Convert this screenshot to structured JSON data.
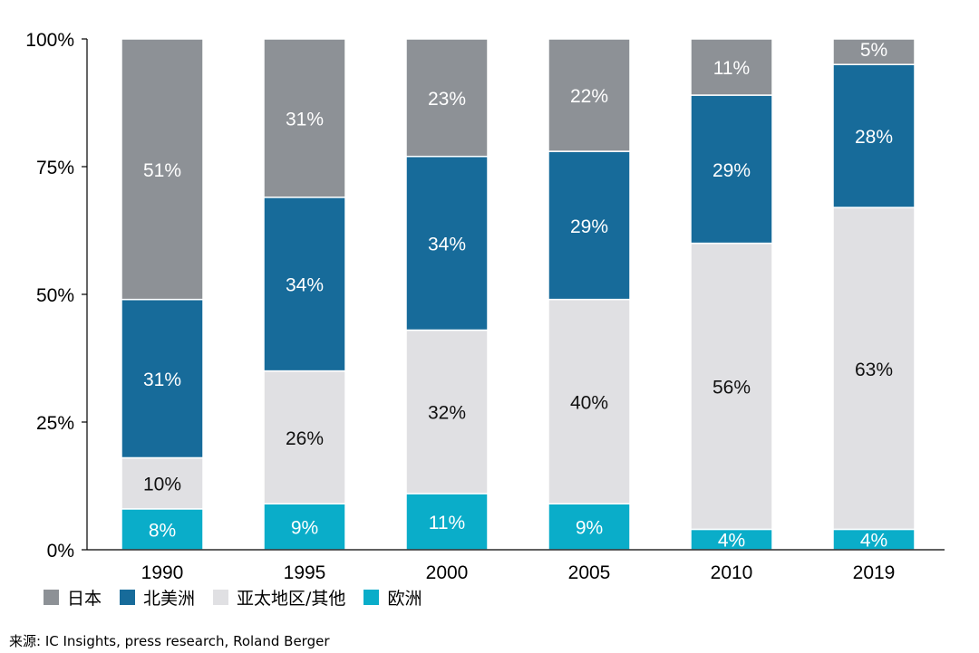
{
  "chart_data": {
    "type": "bar",
    "stacked": true,
    "categories": [
      "1990",
      "1995",
      "2000",
      "2005",
      "2010",
      "2019"
    ],
    "series": [
      {
        "name": "欧洲",
        "color": "#0aadc9",
        "values": [
          8,
          9,
          11,
          9,
          4,
          4
        ],
        "labels": [
          "8%",
          "9%",
          "11%",
          "9%",
          "4%",
          "4%"
        ]
      },
      {
        "name": "亚太地区/其他",
        "color": "#e0e0e3",
        "values": [
          10,
          26,
          32,
          40,
          56,
          63
        ],
        "labels": [
          "10%",
          "26%",
          "32%",
          "40%",
          "56%",
          "63%"
        ]
      },
      {
        "name": "北美洲",
        "color": "#176b9a",
        "values": [
          31,
          34,
          34,
          29,
          29,
          28
        ],
        "labels": [
          "31%",
          "34%",
          "34%",
          "29%",
          "29%",
          "28%"
        ]
      },
      {
        "name": "日本",
        "color": "#8d9196",
        "values": [
          51,
          31,
          23,
          22,
          11,
          5
        ],
        "labels": [
          "51%",
          "31%",
          "23%",
          "22%",
          "11%",
          "5%"
        ]
      }
    ],
    "ylim": [
      0,
      100
    ],
    "yticks": [
      {
        "value": 0,
        "label": "0%"
      },
      {
        "value": 25,
        "label": "25%"
      },
      {
        "value": 50,
        "label": "50%"
      },
      {
        "value": 75,
        "label": "75%"
      },
      {
        "value": 100,
        "label": "100%"
      }
    ],
    "legend_position": "bottom-left",
    "grid": false
  },
  "legend": {
    "items": [
      {
        "label": "日本",
        "color": "#8d9196"
      },
      {
        "label": "北美洲",
        "color": "#176b9a"
      },
      {
        "label": "亚太地区/其他",
        "color": "#e0e0e3"
      },
      {
        "label": "欧洲",
        "color": "#0aadc9"
      }
    ]
  },
  "source_text": "来源: IC Insights, press research, Roland Berger"
}
